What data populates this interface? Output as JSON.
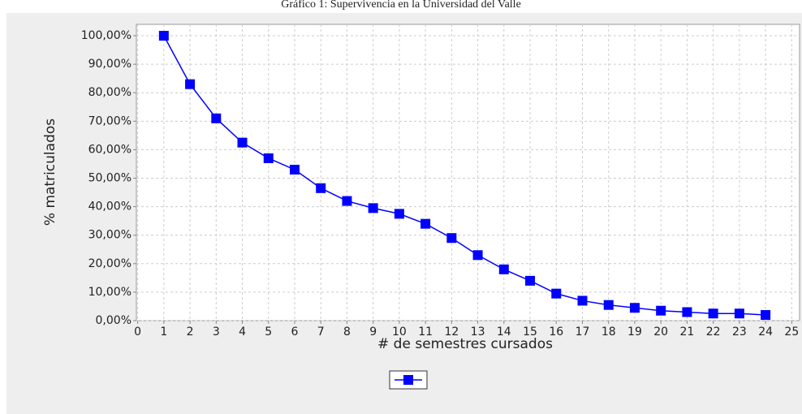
{
  "chart_data": {
    "type": "line",
    "title": "Gráfico 1: Supervivencia en la Universidad del Valle",
    "x_label": "# de semestres cursados",
    "y_label": "% matriculados",
    "x": [
      1,
      2,
      3,
      4,
      5,
      6,
      7,
      8,
      9,
      10,
      11,
      12,
      13,
      14,
      15,
      16,
      17,
      18,
      19,
      20,
      21,
      22,
      23,
      24
    ],
    "series": [
      {
        "color": "#0000ff",
        "values": [
          100,
          83,
          71,
          62.5,
          57,
          53,
          46.5,
          42,
          39.5,
          37.5,
          34,
          29,
          23,
          18,
          14,
          9.5,
          7,
          5.5,
          4.5,
          3.5,
          3,
          2.5,
          2.5,
          2
        ]
      }
    ],
    "xlim": [
      -0.05,
      25.3
    ],
    "ylim": [
      0,
      104
    ],
    "xticks": [
      0,
      1,
      2,
      3,
      4,
      5,
      6,
      7,
      8,
      9,
      10,
      11,
      12,
      13,
      14,
      15,
      16,
      17,
      18,
      19,
      20,
      21,
      22,
      23,
      24,
      25
    ],
    "yticks": [
      {
        "value": 0,
        "label": "0,00%"
      },
      {
        "value": 10,
        "label": "10,00%"
      },
      {
        "value": 20,
        "label": "20,00%"
      },
      {
        "value": 30,
        "label": "30,00%"
      },
      {
        "value": 40,
        "label": "40,00%"
      },
      {
        "value": 50,
        "label": "50,00%"
      },
      {
        "value": 60,
        "label": "60,00%"
      },
      {
        "value": 70,
        "label": "70,00%"
      },
      {
        "value": 80,
        "label": "80,00%"
      },
      {
        "value": 90,
        "label": "90,00%"
      },
      {
        "value": 100,
        "label": "100,00%"
      }
    ],
    "grid": true,
    "legend": "bottom"
  }
}
